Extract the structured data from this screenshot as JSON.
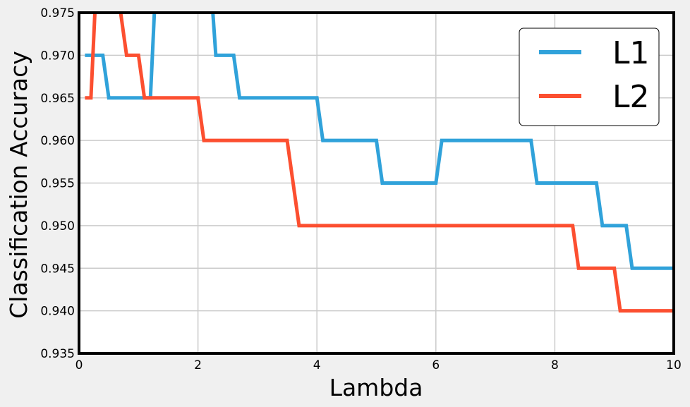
{
  "chart_data": {
    "type": "line",
    "title": "",
    "xlabel": "Lambda",
    "ylabel": "Classification Accuracy",
    "xlim": [
      0,
      10
    ],
    "ylim": [
      0.935,
      0.975
    ],
    "x_ticks": [
      "0",
      "2",
      "4",
      "6",
      "8",
      "10"
    ],
    "y_ticks": [
      "0.935",
      "0.940",
      "0.945",
      "0.950",
      "0.955",
      "0.960",
      "0.965",
      "0.970",
      "0.975"
    ],
    "grid": true,
    "legend_position": "top-right",
    "series": [
      {
        "name": "L1",
        "color": "#30a2da",
        "points": [
          [
            0.1,
            0.97
          ],
          [
            0.4,
            0.97
          ],
          [
            0.5,
            0.965
          ],
          [
            1.2,
            0.965
          ],
          [
            1.3,
            0.98
          ],
          [
            2.2,
            0.98
          ],
          [
            2.3,
            0.97
          ],
          [
            2.6,
            0.97
          ],
          [
            2.7,
            0.965
          ],
          [
            4.0,
            0.965
          ],
          [
            4.1,
            0.96
          ],
          [
            5.0,
            0.96
          ],
          [
            5.1,
            0.955
          ],
          [
            6.0,
            0.955
          ],
          [
            6.1,
            0.96
          ],
          [
            7.6,
            0.96
          ],
          [
            7.7,
            0.955
          ],
          [
            8.7,
            0.955
          ],
          [
            8.8,
            0.95
          ],
          [
            9.2,
            0.95
          ],
          [
            9.3,
            0.945
          ],
          [
            10.0,
            0.945
          ]
        ]
      },
      {
        "name": "L2",
        "color": "#fc4f30",
        "points": [
          [
            0.1,
            0.965
          ],
          [
            0.2,
            0.965
          ],
          [
            0.3,
            0.98
          ],
          [
            0.7,
            0.975
          ],
          [
            0.8,
            0.97
          ],
          [
            1.0,
            0.97
          ],
          [
            1.1,
            0.965
          ],
          [
            2.0,
            0.965
          ],
          [
            2.1,
            0.96
          ],
          [
            3.5,
            0.96
          ],
          [
            3.7,
            0.95
          ],
          [
            8.3,
            0.95
          ],
          [
            8.4,
            0.945
          ],
          [
            9.0,
            0.945
          ],
          [
            9.1,
            0.94
          ],
          [
            10.0,
            0.94
          ]
        ]
      }
    ]
  }
}
